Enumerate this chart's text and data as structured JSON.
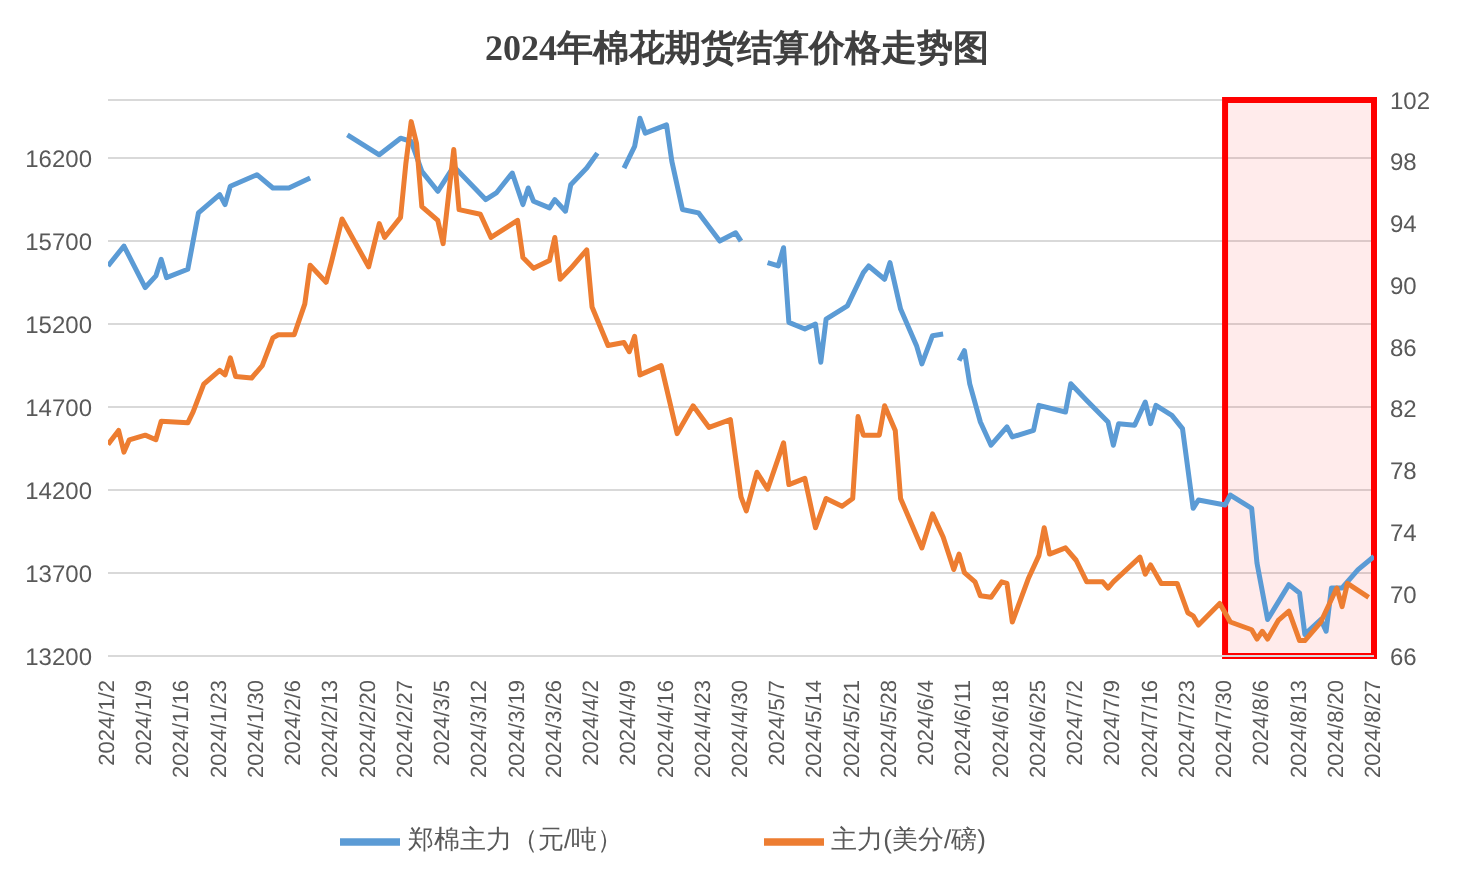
{
  "chart_data": {
    "type": "line",
    "title": "2024年棉花期货结算价格走势图",
    "xlim": [
      "2024-01-02",
      "2024-08-27"
    ],
    "xticks": [
      {
        "value": "2024-01-02",
        "label": "2024/1/2"
      },
      {
        "value": "2024-01-09",
        "label": "2024/1/9"
      },
      {
        "value": "2024-01-16",
        "label": "2024/1/16"
      },
      {
        "value": "2024-01-23",
        "label": "2024/1/23"
      },
      {
        "value": "2024-01-30",
        "label": "2024/1/30"
      },
      {
        "value": "2024-02-06",
        "label": "2024/2/6"
      },
      {
        "value": "2024-02-13",
        "label": "2024/2/13"
      },
      {
        "value": "2024-02-20",
        "label": "2024/2/20"
      },
      {
        "value": "2024-02-27",
        "label": "2024/2/27"
      },
      {
        "value": "2024-03-05",
        "label": "2024/3/5"
      },
      {
        "value": "2024-03-12",
        "label": "2024/3/12"
      },
      {
        "value": "2024-03-19",
        "label": "2024/3/19"
      },
      {
        "value": "2024-03-26",
        "label": "2024/3/26"
      },
      {
        "value": "2024-04-02",
        "label": "2024/4/2"
      },
      {
        "value": "2024-04-09",
        "label": "2024/4/9"
      },
      {
        "value": "2024-04-16",
        "label": "2024/4/16"
      },
      {
        "value": "2024-04-23",
        "label": "2024/4/23"
      },
      {
        "value": "2024-04-30",
        "label": "2024/4/30"
      },
      {
        "value": "2024-05-07",
        "label": "2024/5/7"
      },
      {
        "value": "2024-05-14",
        "label": "2024/5/14"
      },
      {
        "value": "2024-05-21",
        "label": "2024/5/21"
      },
      {
        "value": "2024-05-28",
        "label": "2024/5/28"
      },
      {
        "value": "2024-06-04",
        "label": "2024/6/4"
      },
      {
        "value": "2024-06-11",
        "label": "2024/6/11"
      },
      {
        "value": "2024-06-18",
        "label": "2024/6/18"
      },
      {
        "value": "2024-06-25",
        "label": "2024/6/25"
      },
      {
        "value": "2024-07-02",
        "label": "2024/7/2"
      },
      {
        "value": "2024-07-09",
        "label": "2024/7/9"
      },
      {
        "value": "2024-07-16",
        "label": "2024/7/16"
      },
      {
        "value": "2024-07-23",
        "label": "2024/7/23"
      },
      {
        "value": "2024-07-30",
        "label": "2024/7/30"
      },
      {
        "value": "2024-08-06",
        "label": "2024/8/6"
      },
      {
        "value": "2024-08-13",
        "label": "2024/8/13"
      },
      {
        "value": "2024-08-20",
        "label": "2024/8/20"
      },
      {
        "value": "2024-08-27",
        "label": "2024/8/27"
      }
    ],
    "ylim": [
      13200,
      16550
    ],
    "yticks": [
      13200,
      13700,
      14200,
      14700,
      15200,
      15700,
      16200
    ],
    "y2lim": [
      66,
      102
    ],
    "y2ticks": [
      66,
      70,
      74,
      78,
      82,
      86,
      90,
      94,
      98,
      102
    ],
    "bands": [
      {
        "axis": "x",
        "from": "2024-07-30",
        "to": "2024-08-27",
        "color": "#ff0000"
      }
    ],
    "grid": "y",
    "legend": "bottom",
    "marker": "none",
    "line_style": "solid",
    "series": [
      {
        "name": "郑棉主力（元/吨）",
        "color": "#5b9bd5",
        "x": [
          "2024-01-02",
          "2024-01-05",
          "2024-01-09",
          "2024-01-11",
          "2024-01-12",
          "2024-01-13",
          "2024-01-17",
          "2024-01-19",
          "2024-01-23",
          "2024-01-24",
          "2024-01-25",
          "2024-01-30",
          "2024-02-02",
          "2024-02-05",
          "2024-02-07",
          "2024-02-09",
          "2024-02-12",
          "2024-02-16",
          "2024-02-22",
          "2024-02-26",
          "2024-02-28",
          "2024-03-01",
          "2024-03-04",
          "2024-03-07",
          "2024-03-13",
          "2024-03-15",
          "2024-03-18",
          "2024-03-20",
          "2024-03-21",
          "2024-03-22",
          "2024-03-25",
          "2024-03-26",
          "2024-03-28",
          "2024-03-29",
          "2024-04-01",
          "2024-04-03",
          "2024-04-06",
          "2024-04-08",
          "2024-04-10",
          "2024-04-11",
          "2024-04-12",
          "2024-04-16",
          "2024-04-17",
          "2024-04-19",
          "2024-04-22",
          "2024-04-26",
          "2024-04-29",
          "2024-04-30",
          "2024-05-02",
          "2024-05-05",
          "2024-05-07",
          "2024-05-08",
          "2024-05-09",
          "2024-05-12",
          "2024-05-14",
          "2024-05-15",
          "2024-05-16",
          "2024-05-20",
          "2024-05-23",
          "2024-05-24",
          "2024-05-27",
          "2024-05-28",
          "2024-05-30",
          "2024-06-02",
          "2024-06-03",
          "2024-06-05",
          "2024-06-07",
          "2024-06-08",
          "2024-06-10",
          "2024-06-11",
          "2024-06-12",
          "2024-06-14",
          "2024-06-16",
          "2024-06-19",
          "2024-06-20",
          "2024-06-24",
          "2024-06-25",
          "2024-06-30",
          "2024-07-01",
          "2024-07-04",
          "2024-07-08",
          "2024-07-09",
          "2024-07-10",
          "2024-07-13",
          "2024-07-15",
          "2024-07-16",
          "2024-07-17",
          "2024-07-20",
          "2024-07-22",
          "2024-07-24",
          "2024-07-25",
          "2024-07-30",
          "2024-07-31",
          "2024-08-04",
          "2024-08-05",
          "2024-08-07",
          "2024-08-11",
          "2024-08-13",
          "2024-08-14",
          "2024-08-17",
          "2024-08-18",
          "2024-08-19",
          "2024-08-21",
          "2024-08-24",
          "2024-08-27"
        ],
        "values": [
          15550,
          15670,
          15420,
          15490,
          15590,
          15480,
          15530,
          15870,
          15980,
          15920,
          16030,
          16100,
          16020,
          16020,
          16050,
          16080,
          null,
          16340,
          16220,
          16320,
          16300,
          16120,
          16000,
          16150,
          15950,
          15990,
          16110,
          15920,
          16020,
          15940,
          15900,
          15950,
          15880,
          16040,
          16140,
          16230,
          null,
          16140,
          16270,
          16440,
          16350,
          16400,
          16180,
          15890,
          15870,
          15700,
          15750,
          15700,
          null,
          15570,
          15550,
          15660,
          15210,
          15170,
          15200,
          14970,
          15230,
          15310,
          15510,
          15550,
          15470,
          15570,
          15290,
          15070,
          14960,
          15130,
          15140,
          null,
          14980,
          15040,
          14840,
          14610,
          14470,
          14580,
          14520,
          14560,
          14710,
          14670,
          14840,
          14740,
          14610,
          14470,
          14600,
          14590,
          14730,
          14600,
          14710,
          14650,
          14570,
          14090,
          14140,
          14110,
          14170,
          14090,
          13760,
          13420,
          13630,
          13580,
          13330,
          13420,
          13350,
          13610,
          13610,
          13720,
          13800
        ]
      },
      {
        "name": "主力(美分/磅)",
        "color": "#ed7d31",
        "axis": "y2",
        "x": [
          "2024-01-02",
          "2024-01-04",
          "2024-01-05",
          "2024-01-06",
          "2024-01-09",
          "2024-01-11",
          "2024-01-12",
          "2024-01-17",
          "2024-01-18",
          "2024-01-20",
          "2024-01-23",
          "2024-01-24",
          "2024-01-25",
          "2024-01-26",
          "2024-01-29",
          "2024-01-31",
          "2024-02-02",
          "2024-02-03",
          "2024-02-06",
          "2024-02-08",
          "2024-02-09",
          "2024-02-12",
          "2024-02-13",
          "2024-02-15",
          "2024-02-20",
          "2024-02-22",
          "2024-02-23",
          "2024-02-26",
          "2024-02-27",
          "2024-02-28",
          "2024-02-29",
          "2024-03-01",
          "2024-03-04",
          "2024-03-05",
          "2024-03-07",
          "2024-03-08",
          "2024-03-12",
          "2024-03-14",
          "2024-03-19",
          "2024-03-20",
          "2024-03-22",
          "2024-03-25",
          "2024-03-26",
          "2024-03-27",
          "2024-03-29",
          "2024-04-01",
          "2024-04-02",
          "2024-04-05",
          "2024-04-08",
          "2024-04-09",
          "2024-04-10",
          "2024-04-11",
          "2024-04-15",
          "2024-04-18",
          "2024-04-21",
          "2024-04-24",
          "2024-04-28",
          "2024-04-30",
          "2024-05-01",
          "2024-05-03",
          "2024-05-05",
          "2024-05-08",
          "2024-05-09",
          "2024-05-12",
          "2024-05-14",
          "2024-05-16",
          "2024-05-19",
          "2024-05-21",
          "2024-05-22",
          "2024-05-23",
          "2024-05-26",
          "2024-05-27",
          "2024-05-29",
          "2024-05-30",
          "2024-06-03",
          "2024-06-05",
          "2024-06-07",
          "2024-06-09",
          "2024-06-10",
          "2024-06-11",
          "2024-06-13",
          "2024-06-14",
          "2024-06-16",
          "2024-06-18",
          "2024-06-19",
          "2024-06-20",
          "2024-06-23",
          "2024-06-25",
          "2024-06-26",
          "2024-06-27",
          "2024-06-30",
          "2024-07-02",
          "2024-07-04",
          "2024-07-07",
          "2024-07-08",
          "2024-07-09",
          "2024-07-14",
          "2024-07-15",
          "2024-07-16",
          "2024-07-18",
          "2024-07-21",
          "2024-07-23",
          "2024-07-24",
          "2024-07-25",
          "2024-07-29",
          "2024-07-31",
          "2024-08-04",
          "2024-08-05",
          "2024-08-06",
          "2024-08-07",
          "2024-08-09",
          "2024-08-11",
          "2024-08-13",
          "2024-08-14",
          "2024-08-17",
          "2024-08-20",
          "2024-08-21",
          "2024-08-22",
          "2024-08-26"
        ],
        "values": [
          79.7,
          80.6,
          79.2,
          80.0,
          80.3,
          80.0,
          81.2,
          81.1,
          81.8,
          83.6,
          84.5,
          84.2,
          85.3,
          84.1,
          84.0,
          84.8,
          86.6,
          86.8,
          86.8,
          88.8,
          91.3,
          90.2,
          91.5,
          94.3,
          91.2,
          94.0,
          93.1,
          94.4,
          97.9,
          100.6,
          99.2,
          95.1,
          94.2,
          92.7,
          98.8,
          94.9,
          94.6,
          93.1,
          94.2,
          91.8,
          91.1,
          91.6,
          93.1,
          90.4,
          91.1,
          92.3,
          88.6,
          86.1,
          86.3,
          85.7,
          86.7,
          84.2,
          84.8,
          80.4,
          82.2,
          80.8,
          81.3,
          76.3,
          75.4,
          77.9,
          76.8,
          79.8,
          77.1,
          77.5,
          74.3,
          76.2,
          75.7,
          76.2,
          81.5,
          80.3,
          80.3,
          82.2,
          80.6,
          76.2,
          73.0,
          75.2,
          73.7,
          71.6,
          72.6,
          71.4,
          70.8,
          69.9,
          69.8,
          70.8,
          70.7,
          68.2,
          71.0,
          72.5,
          74.3,
          72.6,
          73.0,
          72.2,
          70.8,
          70.8,
          70.4,
          70.8,
          72.4,
          71.3,
          71.9,
          70.7,
          70.7,
          68.8,
          68.6,
          68.0,
          69.4,
          68.2,
          67.7,
          67.1,
          67.6,
          67.1,
          68.3,
          68.9,
          67.0,
          67.0,
          68.2,
          70.4,
          69.2,
          70.7,
          69.8
        ]
      }
    ]
  }
}
